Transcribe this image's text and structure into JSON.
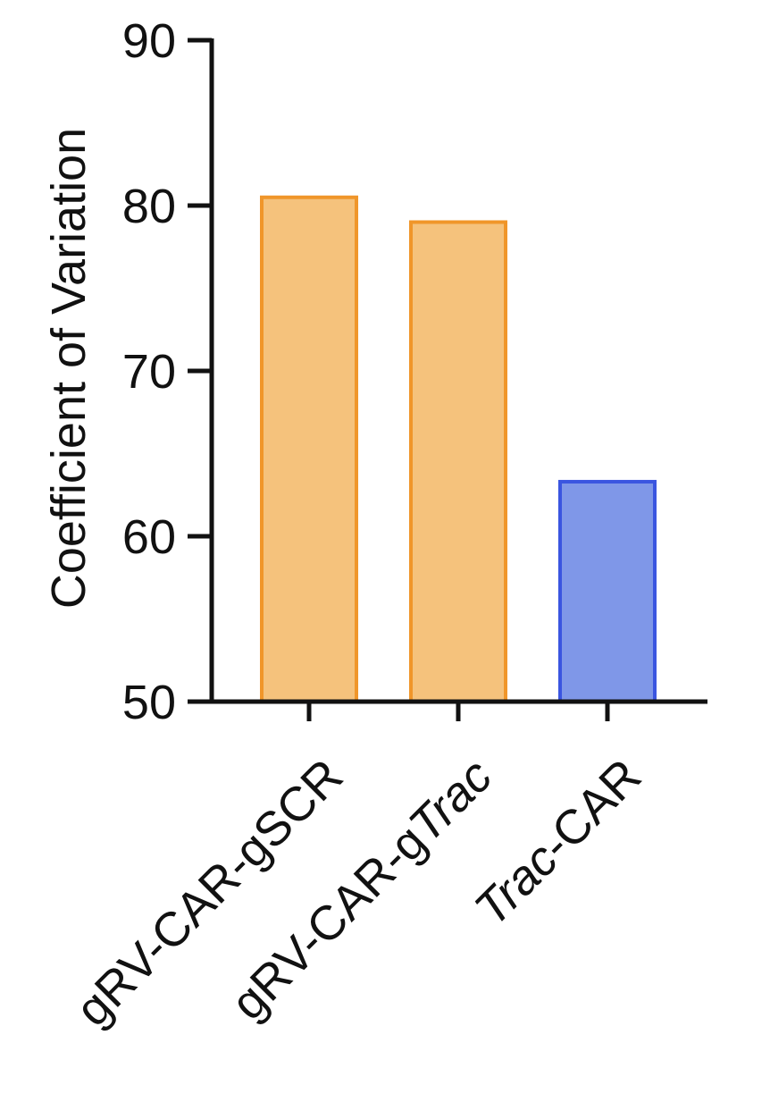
{
  "chart_data": {
    "type": "bar",
    "title": "",
    "xlabel": "",
    "ylabel": "Coefficient of Variation",
    "ylim": [
      50,
      90
    ],
    "yticks": [
      "90",
      "80",
      "70",
      "60",
      "50"
    ],
    "ytick_values": [
      90,
      80,
      70,
      60,
      50
    ],
    "grid": false,
    "categories": [
      {
        "label_parts": [
          {
            "text": "gRV-CAR-gSCR",
            "italic": false
          }
        ]
      },
      {
        "label_parts": [
          {
            "text": "gRV-CAR-g",
            "italic": false
          },
          {
            "text": "Trac",
            "italic": true
          }
        ]
      },
      {
        "label_parts": [
          {
            "text": "Trac",
            "italic": true
          },
          {
            "text": "-CAR",
            "italic": false
          }
        ]
      }
    ],
    "values": [
      80.5,
      79.0,
      63.3
    ],
    "bar_fill_colors": [
      "#f5c27c",
      "#f5c27c",
      "#7f97e8"
    ],
    "bar_edge_colors": [
      "#f0962a",
      "#f0962a",
      "#3a55e0"
    ]
  }
}
